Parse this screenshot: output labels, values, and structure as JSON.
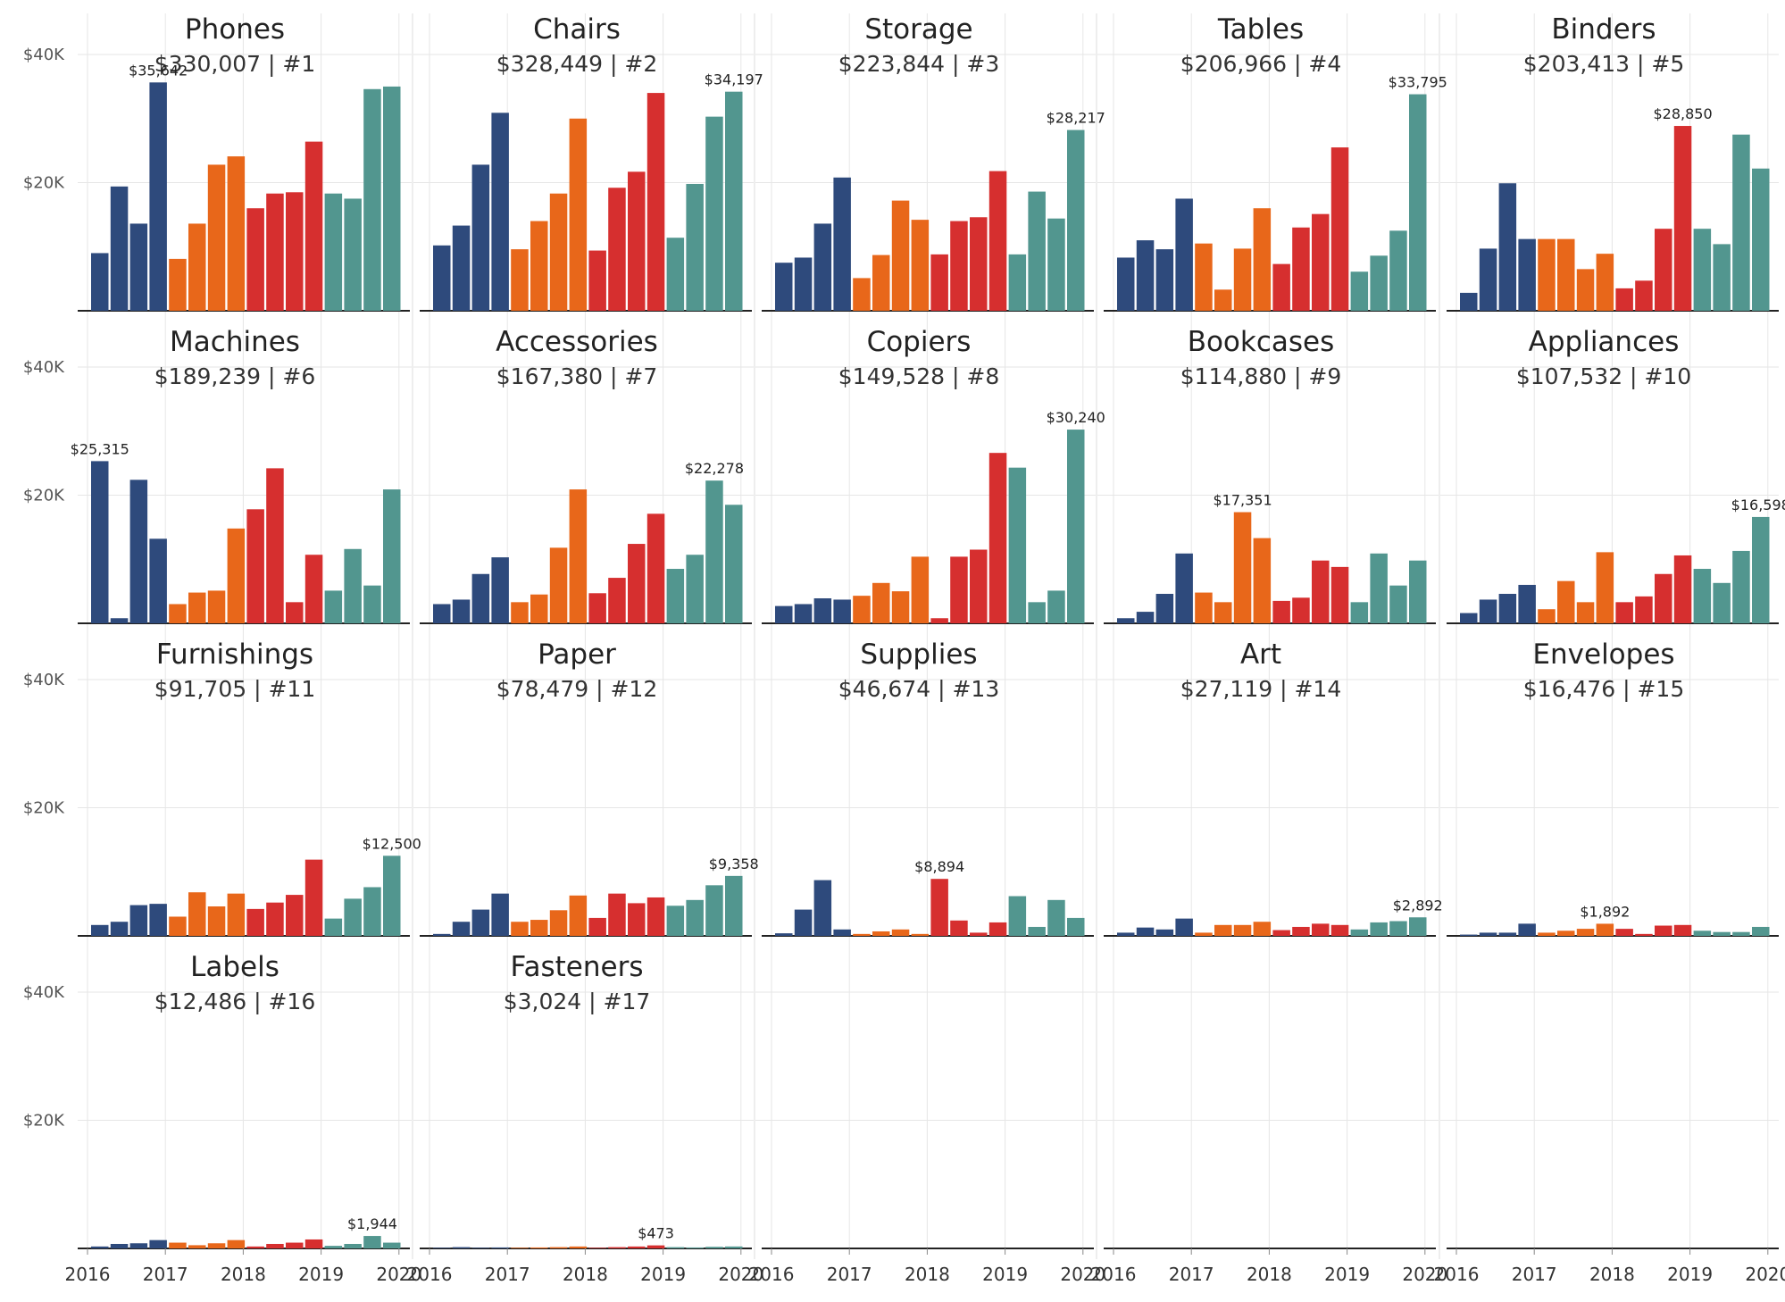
{
  "chart_data": {
    "type": "bar",
    "layout": "small-multiples",
    "quarters": [
      "2016 Q1",
      "2016 Q2",
      "2016 Q3",
      "2016 Q4",
      "2017 Q1",
      "2017 Q2",
      "2017 Q3",
      "2017 Q4",
      "2018 Q1",
      "2018 Q2",
      "2018 Q3",
      "2018 Q4",
      "2019 Q1",
      "2019 Q2",
      "2019 Q3",
      "2019 Q4"
    ],
    "x_tick_labels": [
      "2016",
      "2017",
      "2018",
      "2019",
      "2020"
    ],
    "y_tick_labels": [
      "$40K",
      "$20K"
    ],
    "ylim": [
      0,
      46000
    ],
    "grid": true,
    "colors": {
      "year_2016": "#2e4a7c",
      "year_2017": "#e8671a",
      "year_2018": "#d62f2f",
      "year_2019": "#52968f",
      "axis": "#222222",
      "grid": "#e6e6e6"
    },
    "panels": [
      {
        "name": "Phones",
        "subtitle": "$330,007 | #1",
        "values": [
          9000,
          19400,
          13600,
          35642,
          8100,
          13600,
          22800,
          24100,
          16000,
          18300,
          18500,
          26400,
          18300,
          17500,
          34600,
          35000
        ],
        "label_index": 3,
        "label_text": "$35,642"
      },
      {
        "name": "Chairs",
        "subtitle": "$328,449 | #2",
        "values": [
          10200,
          13300,
          22800,
          30900,
          9600,
          14000,
          18300,
          30000,
          9400,
          19200,
          21700,
          34000,
          11400,
          19800,
          30300,
          34197
        ],
        "label_index": 15,
        "label_text": "$34,197"
      },
      {
        "name": "Storage",
        "subtitle": "$223,844 | #3",
        "values": [
          7500,
          8300,
          13600,
          20800,
          5100,
          8700,
          17200,
          14200,
          8800,
          14000,
          14600,
          21800,
          8800,
          18600,
          14400,
          28217
        ],
        "label_index": 15,
        "label_text": "$28,217"
      },
      {
        "name": "Tables",
        "subtitle": "$206,966 | #4",
        "values": [
          8300,
          11000,
          9600,
          17500,
          10500,
          3300,
          9700,
          16000,
          7300,
          13000,
          15100,
          25500,
          6100,
          8600,
          12500,
          33795
        ],
        "label_index": 15,
        "label_text": "$33,795"
      },
      {
        "name": "Binders",
        "subtitle": "$203,413 | #5",
        "values": [
          2800,
          9700,
          19900,
          11200,
          11200,
          11200,
          6500,
          8900,
          3500,
          4700,
          12800,
          28850,
          12800,
          10400,
          27500,
          22200
        ],
        "label_index": 11,
        "label_text": "$28,850"
      },
      {
        "name": "Machines",
        "subtitle": "$189,239 | #6",
        "values": [
          25315,
          800,
          22400,
          13200,
          3000,
          4800,
          5100,
          14800,
          17800,
          24200,
          3300,
          10700,
          5100,
          11600,
          5900,
          20900
        ],
        "label_index": 0,
        "label_text": "$25,315"
      },
      {
        "name": "Accessories",
        "subtitle": "$167,380 | #7",
        "values": [
          3000,
          3700,
          7700,
          10300,
          3300,
          4500,
          11800,
          20900,
          4700,
          7100,
          12400,
          17100,
          8500,
          10700,
          22278,
          18500
        ],
        "label_index": 14,
        "label_text": "$22,278"
      },
      {
        "name": "Copiers",
        "subtitle": "$149,528 | #8",
        "values": [
          2700,
          3000,
          3900,
          3700,
          4300,
          6300,
          5000,
          10400,
          800,
          10400,
          11500,
          26600,
          24300,
          3300,
          5100,
          30240
        ],
        "label_index": 15,
        "label_text": "$30,240"
      },
      {
        "name": "Bookcases",
        "subtitle": "$114,880 | #9",
        "values": [
          800,
          1800,
          4600,
          10900,
          4800,
          3300,
          17351,
          13300,
          3500,
          4000,
          9800,
          8800,
          3300,
          10900,
          5900,
          9800
        ],
        "label_index": 6,
        "label_text": "$17,351"
      },
      {
        "name": "Appliances",
        "subtitle": "$107,532 | #10",
        "values": [
          1600,
          3700,
          4600,
          6000,
          2200,
          6600,
          3300,
          11100,
          3300,
          4200,
          7700,
          10600,
          8500,
          6300,
          11300,
          16598
        ],
        "label_index": 15,
        "label_text": "$16,598"
      },
      {
        "name": "Furnishings",
        "subtitle": "$91,705 | #11",
        "values": [
          1700,
          2200,
          4800,
          5000,
          3000,
          6800,
          4600,
          6600,
          4200,
          5200,
          6400,
          11900,
          2700,
          5800,
          7600,
          12500
        ],
        "label_index": 15,
        "label_text": "$12,500"
      },
      {
        "name": "Paper",
        "subtitle": "$78,479 | #12",
        "values": [
          300,
          2200,
          4100,
          6600,
          2200,
          2500,
          4000,
          6300,
          2800,
          6600,
          5100,
          6000,
          4700,
          5600,
          7900,
          9358
        ],
        "label_index": 15,
        "label_text": "$9,358"
      },
      {
        "name": "Supplies",
        "subtitle": "$46,674 | #13",
        "values": [
          400,
          4100,
          8700,
          1000,
          300,
          700,
          1000,
          300,
          8894,
          2400,
          500,
          2100,
          6200,
          1400,
          5600,
          2800
        ],
        "label_index": 8,
        "label_text": "$8,894"
      },
      {
        "name": "Art",
        "subtitle": "$27,119 | #14",
        "values": [
          500,
          1300,
          1000,
          2700,
          500,
          1700,
          1700,
          2200,
          900,
          1400,
          1900,
          1700,
          1000,
          2100,
          2300,
          2892
        ],
        "label_index": 15,
        "label_text": "$2,892"
      },
      {
        "name": "Envelopes",
        "subtitle": "$16,476 | #15",
        "values": [
          200,
          500,
          500,
          1900,
          500,
          800,
          1100,
          1892,
          1100,
          300,
          1600,
          1700,
          800,
          600,
          600,
          1400
        ],
        "label_index": 7,
        "label_text": "$1,892"
      },
      {
        "name": "Labels",
        "subtitle": "$12,486 | #16",
        "values": [
          300,
          700,
          800,
          1300,
          900,
          500,
          800,
          1300,
          300,
          700,
          900,
          1400,
          400,
          700,
          1944,
          900
        ],
        "label_index": 14,
        "label_text": "$1,944"
      },
      {
        "name": "Fasteners",
        "subtitle": "$3,024 | #17",
        "values": [
          100,
          200,
          100,
          150,
          100,
          150,
          200,
          300,
          100,
          200,
          300,
          473,
          200,
          150,
          250,
          300
        ],
        "label_index": 11,
        "label_text": "$473"
      }
    ]
  }
}
